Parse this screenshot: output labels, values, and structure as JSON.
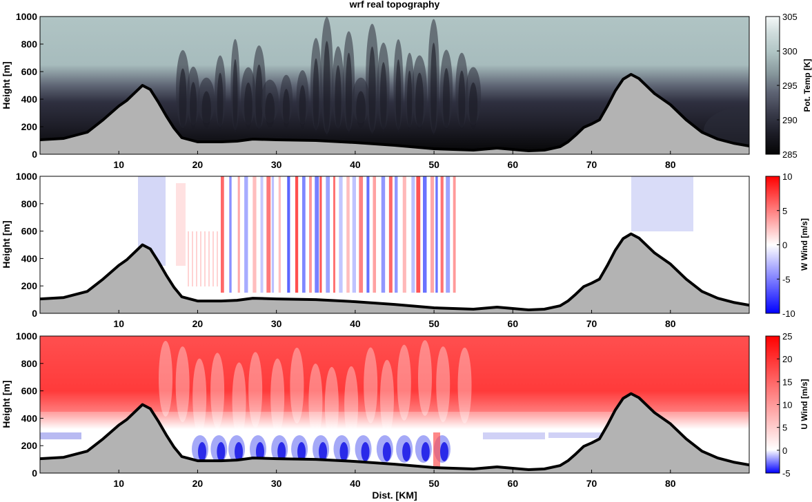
{
  "chart_data": {
    "type": "heatmap",
    "title": "wrf real topography",
    "xlabel": "Dist. [KM]",
    "xlim": [
      0,
      90
    ],
    "x_ticks": [
      10,
      20,
      30,
      40,
      50,
      60,
      70,
      80
    ],
    "terrain": {
      "x": [
        0,
        3,
        6,
        8,
        10,
        11,
        13,
        14,
        15,
        16,
        17,
        18,
        20,
        23,
        25,
        27,
        30,
        35,
        40,
        45,
        50,
        55,
        58,
        60,
        62,
        64,
        66,
        67,
        68,
        69,
        70,
        71,
        72,
        73,
        74,
        75,
        76,
        78,
        80,
        82,
        84,
        86,
        88,
        90
      ],
      "height": [
        105,
        115,
        160,
        250,
        350,
        390,
        500,
        470,
        380,
        280,
        190,
        120,
        90,
        90,
        95,
        110,
        105,
        100,
        85,
        65,
        40,
        30,
        45,
        35,
        25,
        30,
        55,
        90,
        140,
        195,
        220,
        250,
        350,
        460,
        545,
        580,
        550,
        440,
        360,
        250,
        160,
        110,
        80,
        60
      ]
    },
    "panels": [
      {
        "variable": "potential_temperature",
        "ylabel": "Height [m]",
        "ylim": [
          0,
          1000
        ],
        "y_ticks": [
          0,
          200,
          400,
          600,
          800,
          1000
        ],
        "colorbar_label": "Pot. Temp [K]",
        "clim": [
          285,
          305
        ],
        "colorbar_ticks": [
          285,
          290,
          295,
          300,
          305
        ],
        "colormap": [
          "#050505",
          "#2e2f3d",
          "#55596a",
          "#8a9aa0",
          "#b2c6c6",
          "#c8d7d7",
          "#f2f7f7"
        ]
      },
      {
        "variable": "w_wind",
        "ylabel": "Height [m]",
        "ylim": [
          0,
          1000
        ],
        "y_ticks": [
          0,
          200,
          400,
          600,
          800,
          1000
        ],
        "colorbar_label": "W Wind [m/s]",
        "clim": [
          -10,
          10
        ],
        "colorbar_ticks": [
          -10,
          -5,
          0,
          5,
          10
        ],
        "colormap": [
          "#0000ff",
          "#ffffff",
          "#ff0000"
        ]
      },
      {
        "variable": "u_wind",
        "ylabel": "Height [m]",
        "ylim": [
          0,
          1000
        ],
        "y_ticks": [
          0,
          200,
          400,
          600,
          800,
          1000
        ],
        "colorbar_label": "U Wind [m/s]",
        "clim": [
          -5,
          25
        ],
        "colorbar_ticks": [
          -5,
          0,
          5,
          10,
          15,
          20,
          25
        ],
        "colormap": [
          "#0000ff",
          "#ffffff",
          "#ff0000"
        ]
      }
    ]
  }
}
